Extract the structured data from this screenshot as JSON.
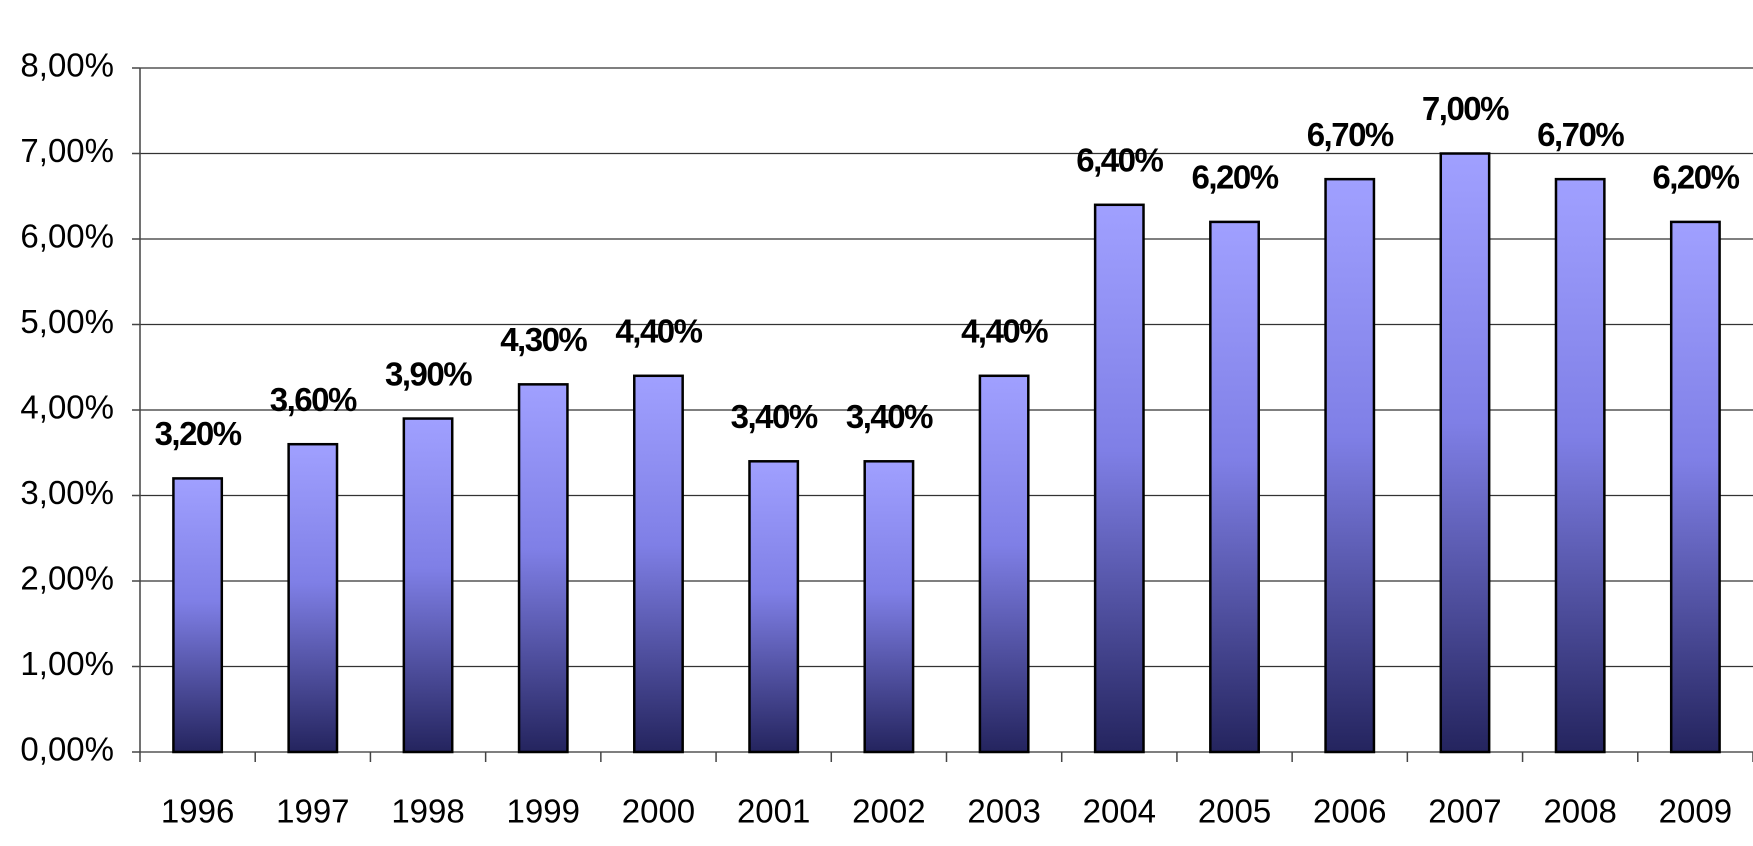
{
  "chart_data": {
    "type": "bar",
    "categories": [
      "1996",
      "1997",
      "1998",
      "1999",
      "2000",
      "2001",
      "2002",
      "2003",
      "2004",
      "2005",
      "2006",
      "2007",
      "2008",
      "2009"
    ],
    "values": [
      3.2,
      3.6,
      3.9,
      4.3,
      4.4,
      3.4,
      3.4,
      4.4,
      6.4,
      6.2,
      6.7,
      7.0,
      6.7,
      6.2
    ],
    "value_labels": [
      "3,20%",
      "3,60%",
      "3,90%",
      "4,30%",
      "4,40%",
      "3,40%",
      "3,40%",
      "4,40%",
      "6,40%",
      "6,20%",
      "6,70%",
      "7,00%",
      "6,70%",
      "6,20%"
    ],
    "color": "#8c8cf5",
    "ylim": [
      0,
      8
    ],
    "yticks": [
      {
        "value": 0,
        "label": "0,00%"
      },
      {
        "value": 1,
        "label": "1,00%"
      },
      {
        "value": 2,
        "label": "2,00%"
      },
      {
        "value": 3,
        "label": "3,00%"
      },
      {
        "value": 4,
        "label": "4,00%"
      },
      {
        "value": 5,
        "label": "5,00%"
      },
      {
        "value": 6,
        "label": "6,00%"
      },
      {
        "value": 7,
        "label": "7,00%"
      },
      {
        "value": 8,
        "label": "8,00%"
      }
    ],
    "grid": true
  }
}
